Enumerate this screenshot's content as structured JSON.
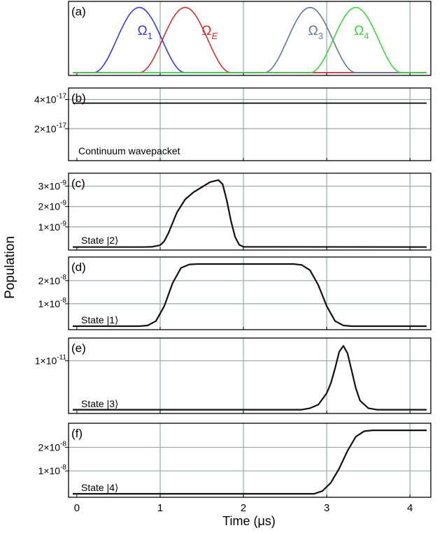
{
  "figure": {
    "ylabel": "Population",
    "xlabel": "Time (μs)",
    "xticks": [
      "0",
      "1",
      "2",
      "3",
      "4"
    ],
    "xlim": [
      -0.1,
      4.25
    ]
  },
  "chart_data": [
    {
      "type": "line",
      "panel_label": "(a)",
      "yticks": [],
      "ylim": [
        0,
        1.05
      ],
      "series": [
        {
          "name": "Ω",
          "name_sub": "1",
          "color": "#3a3adb",
          "label_italic": false,
          "center": 0.75,
          "width": 0.55
        },
        {
          "name": "Ω",
          "name_sub": "E",
          "color": "#d43030",
          "label_italic": true,
          "center": 1.3,
          "width": 0.55
        },
        {
          "name": "Ω",
          "name_sub": "3",
          "color": "#5f7896",
          "label_italic": false,
          "center": 2.8,
          "width": 0.55
        },
        {
          "name": "Ω",
          "name_sub": "4",
          "color": "#3fd43f",
          "label_italic": false,
          "center": 3.35,
          "width": 0.55
        }
      ]
    },
    {
      "type": "line",
      "panel_label": "(b)",
      "annotation": "Continuum wavepacket",
      "ylim": [
        0,
        4.6e-17
      ],
      "yticks": [
        {
          "value": 2e-17,
          "mantissa": "2×10",
          "exp": "-17"
        },
        {
          "value": 4e-17,
          "mantissa": "4×10",
          "exp": "-17"
        }
      ],
      "x": [
        -0.05,
        4.2
      ],
      "y": [
        3.75e-17,
        3.75e-17
      ]
    },
    {
      "type": "line",
      "panel_label": "(c)",
      "annotation": "State |2⟩",
      "ylim": [
        0,
        3.5e-09
      ],
      "yticks": [
        {
          "value": 1e-09,
          "mantissa": "1×10",
          "exp": "-9"
        },
        {
          "value": 2e-09,
          "mantissa": "2×10",
          "exp": "-9"
        },
        {
          "value": 3e-09,
          "mantissa": "3×10",
          "exp": "-9"
        }
      ],
      "x": [
        -0.05,
        0.8,
        0.9,
        1.0,
        1.05,
        1.1,
        1.15,
        1.2,
        1.3,
        1.4,
        1.5,
        1.6,
        1.7,
        1.75,
        1.8,
        1.85,
        1.9,
        1.95,
        2.0,
        4.2
      ],
      "y": [
        1e-11,
        1e-11,
        2e-11,
        1e-10,
        3e-10,
        7e-10,
        1.2e-09,
        1.7e-09,
        2.35e-09,
        2.7e-09,
        2.95e-09,
        3.2e-09,
        3.3e-09,
        3.1e-09,
        2.3e-09,
        1.3e-09,
        5e-10,
        1.2e-10,
        2e-11,
        1e-11
      ]
    },
    {
      "type": "line",
      "panel_label": "(d)",
      "annotation": "State |1⟩",
      "ylim": [
        0,
        2.9e-08
      ],
      "yticks": [
        {
          "value": 1e-08,
          "mantissa": "1×10",
          "exp": "-8"
        },
        {
          "value": 2e-08,
          "mantissa": "2×10",
          "exp": "-8"
        }
      ],
      "x": [
        -0.05,
        0.75,
        0.85,
        0.95,
        1.05,
        1.15,
        1.25,
        1.35,
        1.45,
        2.6,
        2.7,
        2.8,
        2.9,
        3.0,
        3.1,
        3.2,
        3.3,
        4.2
      ],
      "y": [
        3e-10,
        3e-10,
        6e-10,
        2.5e-09,
        9e-09,
        1.9e-08,
        2.55e-08,
        2.7e-08,
        2.72e-08,
        2.72e-08,
        2.68e-08,
        2.45e-08,
        1.8e-08,
        9e-09,
        2.5e-09,
        6e-10,
        3e-10,
        3e-10
      ]
    },
    {
      "type": "line",
      "panel_label": "(e)",
      "annotation": "State |3⟩",
      "ylim": [
        0,
        1.4e-11
      ],
      "yticks": [
        {
          "value": 1e-11,
          "mantissa": "1×10",
          "exp": "-11"
        }
      ],
      "x": [
        -0.05,
        2.7,
        2.8,
        2.9,
        3.0,
        3.05,
        3.1,
        3.15,
        3.2,
        3.25,
        3.3,
        3.35,
        3.4,
        3.5,
        3.6,
        4.2
      ],
      "y": [
        2e-13,
        2e-13,
        5e-13,
        1.2e-12,
        3.5e-12,
        5.5e-12,
        8.5e-12,
        1.18e-11,
        1.3e-11,
        1.15e-11,
        8e-12,
        4.5e-12,
        2e-12,
        5e-13,
        2e-13,
        2e-13
      ]
    },
    {
      "type": "line",
      "panel_label": "(f)",
      "annotation": "State |4⟩",
      "ylim": [
        0,
        2.9e-08
      ],
      "yticks": [
        {
          "value": 1e-08,
          "mantissa": "1×10",
          "exp": "-8"
        },
        {
          "value": 2e-08,
          "mantissa": "2×10",
          "exp": "-8"
        }
      ],
      "x": [
        -0.05,
        2.85,
        2.95,
        3.05,
        3.15,
        3.25,
        3.35,
        3.45,
        3.55,
        3.65,
        4.2
      ],
      "y": [
        3e-10,
        3e-10,
        1.5e-09,
        5e-09,
        1.1e-08,
        1.85e-08,
        2.45e-08,
        2.68e-08,
        2.72e-08,
        2.72e-08,
        2.72e-08
      ]
    }
  ]
}
